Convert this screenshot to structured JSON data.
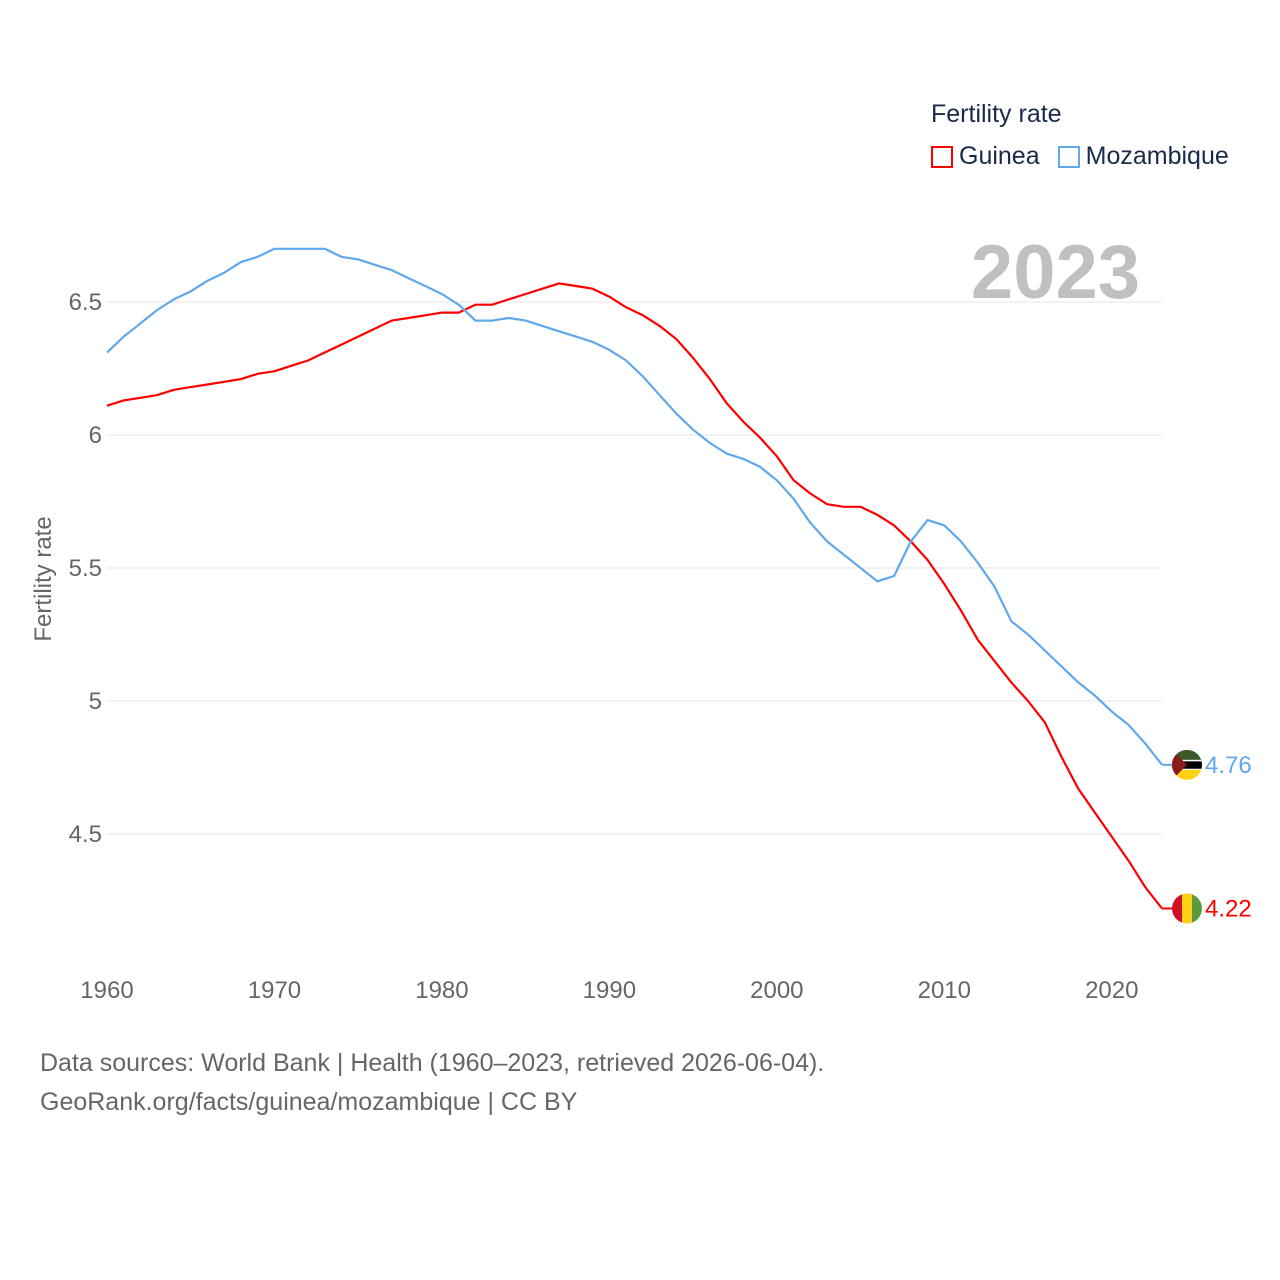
{
  "legend": {
    "title": "Fertility rate"
  },
  "source": {
    "line1": "Data sources: World Bank | Health (1960–2023, retrieved 2026-06-04).",
    "line2": "GeoRank.org/facts/guinea/mozambique | CC BY"
  },
  "chart_data": {
    "type": "line",
    "title": "Fertility rate",
    "year_label": "2023",
    "xlabel": "",
    "ylabel": "Fertility rate",
    "xlim": [
      1960,
      2023
    ],
    "ylim": [
      4.0,
      6.8
    ],
    "x_ticks": [
      "1960",
      "1970",
      "1980",
      "1990",
      "2000",
      "2010",
      "2020"
    ],
    "y_ticks": [
      "4.5",
      "5",
      "5.5",
      "6",
      "6.5"
    ],
    "grid": true,
    "legend_position": "top-right",
    "x": [
      1960,
      1961,
      1962,
      1963,
      1964,
      1965,
      1966,
      1967,
      1968,
      1969,
      1970,
      1971,
      1972,
      1973,
      1974,
      1975,
      1976,
      1977,
      1978,
      1979,
      1980,
      1981,
      1982,
      1983,
      1984,
      1985,
      1986,
      1987,
      1988,
      1989,
      1990,
      1991,
      1992,
      1993,
      1994,
      1995,
      1996,
      1997,
      1998,
      1999,
      2000,
      2001,
      2002,
      2003,
      2004,
      2005,
      2006,
      2007,
      2008,
      2009,
      2010,
      2011,
      2012,
      2013,
      2014,
      2015,
      2016,
      2017,
      2018,
      2019,
      2020,
      2021,
      2022,
      2023
    ],
    "series": [
      {
        "name": "Guinea",
        "color": "#ff0000",
        "end_label": "4.22",
        "values": [
          6.11,
          6.13,
          6.14,
          6.15,
          6.17,
          6.18,
          6.19,
          6.2,
          6.21,
          6.23,
          6.24,
          6.26,
          6.28,
          6.31,
          6.34,
          6.37,
          6.4,
          6.43,
          6.44,
          6.45,
          6.46,
          6.46,
          6.49,
          6.49,
          6.51,
          6.53,
          6.55,
          6.57,
          6.56,
          6.55,
          6.52,
          6.48,
          6.45,
          6.41,
          6.36,
          6.29,
          6.21,
          6.12,
          6.05,
          5.99,
          5.92,
          5.83,
          5.78,
          5.74,
          5.73,
          5.73,
          5.7,
          5.66,
          5.6,
          5.53,
          5.44,
          5.34,
          5.23,
          5.15,
          5.07,
          5.0,
          4.92,
          4.79,
          4.67,
          4.58,
          4.49,
          4.4,
          4.3,
          4.22
        ]
      },
      {
        "name": "Mozambique",
        "color": "#5fa8ec",
        "end_label": "4.76",
        "values": [
          6.31,
          6.37,
          6.42,
          6.47,
          6.51,
          6.54,
          6.58,
          6.61,
          6.65,
          6.67,
          6.7,
          6.7,
          6.7,
          6.7,
          6.67,
          6.66,
          6.64,
          6.62,
          6.59,
          6.56,
          6.53,
          6.49,
          6.43,
          6.43,
          6.44,
          6.43,
          6.41,
          6.39,
          6.37,
          6.35,
          6.32,
          6.28,
          6.22,
          6.15,
          6.08,
          6.02,
          5.97,
          5.93,
          5.91,
          5.88,
          5.83,
          5.76,
          5.67,
          5.6,
          5.55,
          5.5,
          5.45,
          5.47,
          5.6,
          5.68,
          5.66,
          5.6,
          5.52,
          5.43,
          5.3,
          5.25,
          5.19,
          5.13,
          5.07,
          5.02,
          4.96,
          4.91,
          4.84,
          4.76
        ]
      }
    ]
  }
}
